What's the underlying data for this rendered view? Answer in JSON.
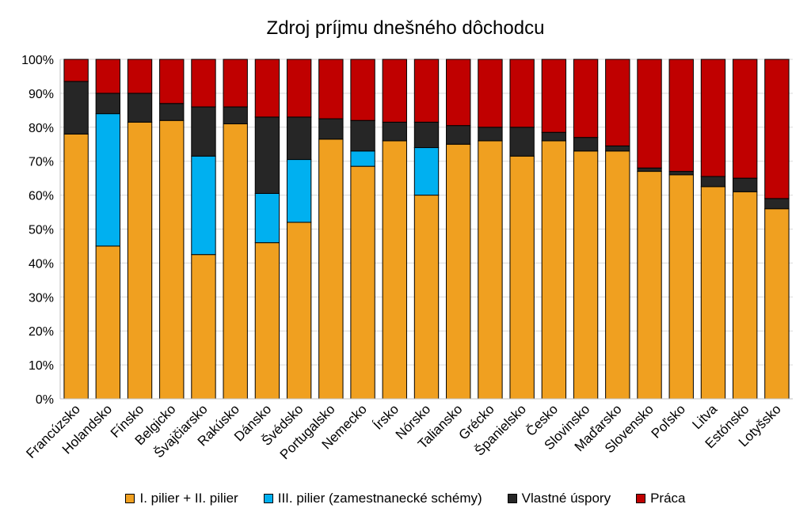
{
  "chart_data": {
    "type": "bar",
    "stacked": true,
    "title": "Zdroj príjmu dnešného dôchodcu",
    "xlabel": "",
    "ylabel": "",
    "ylim": [
      0,
      100
    ],
    "yticks": [
      "0%",
      "10%",
      "20%",
      "30%",
      "40%",
      "50%",
      "60%",
      "70%",
      "80%",
      "90%",
      "100%"
    ],
    "grid": true,
    "legend_position": "bottom",
    "categories": [
      "Francúzsko",
      "Holandsko",
      "Fínsko",
      "Belgicko",
      "Švajčiarsko",
      "Rakúsko",
      "Dánsko",
      "Švédsko",
      "Portugalsko",
      "Nemecko",
      "Írsko",
      "Nórsko",
      "Taliansko",
      "Grécko",
      "Španielsko",
      "Česko",
      "Slovinsko",
      "Maďarsko",
      "Slovensko",
      "Poľsko",
      "Litva",
      "Estónsko",
      "Lotyšsko"
    ],
    "series": [
      {
        "name": "I. pilier + II. pilier",
        "color": "#f0a020",
        "values": [
          78,
          45,
          81.5,
          82,
          42.5,
          81,
          46,
          52,
          76.5,
          68.5,
          76,
          60,
          75,
          76,
          71.5,
          76,
          73,
          73,
          67,
          66,
          62.5,
          61,
          56
        ]
      },
      {
        "name": "III. pilier (zamestnanecké schémy)",
        "color": "#00b0f0",
        "values": [
          0,
          39,
          0,
          0,
          29,
          0,
          14.5,
          18.5,
          0,
          4.5,
          0,
          14,
          0,
          0,
          0,
          0,
          0,
          0,
          0,
          0,
          0,
          0,
          0
        ]
      },
      {
        "name": "Vlastné úspory",
        "color": "#262626",
        "values": [
          15.5,
          6,
          8.5,
          5,
          14.5,
          5,
          22.5,
          12.5,
          6,
          9,
          5.5,
          7.5,
          5.5,
          4,
          8.5,
          2.5,
          4,
          1.5,
          1,
          1,
          3,
          4,
          3
        ]
      },
      {
        "name": "Práca",
        "color": "#c00000",
        "values": [
          6.5,
          10,
          10,
          13,
          14,
          14,
          17,
          17,
          17.5,
          18,
          18.5,
          18.5,
          19.5,
          20,
          20,
          21.5,
          23,
          25.5,
          32,
          33,
          34.5,
          35,
          41
        ]
      }
    ]
  }
}
